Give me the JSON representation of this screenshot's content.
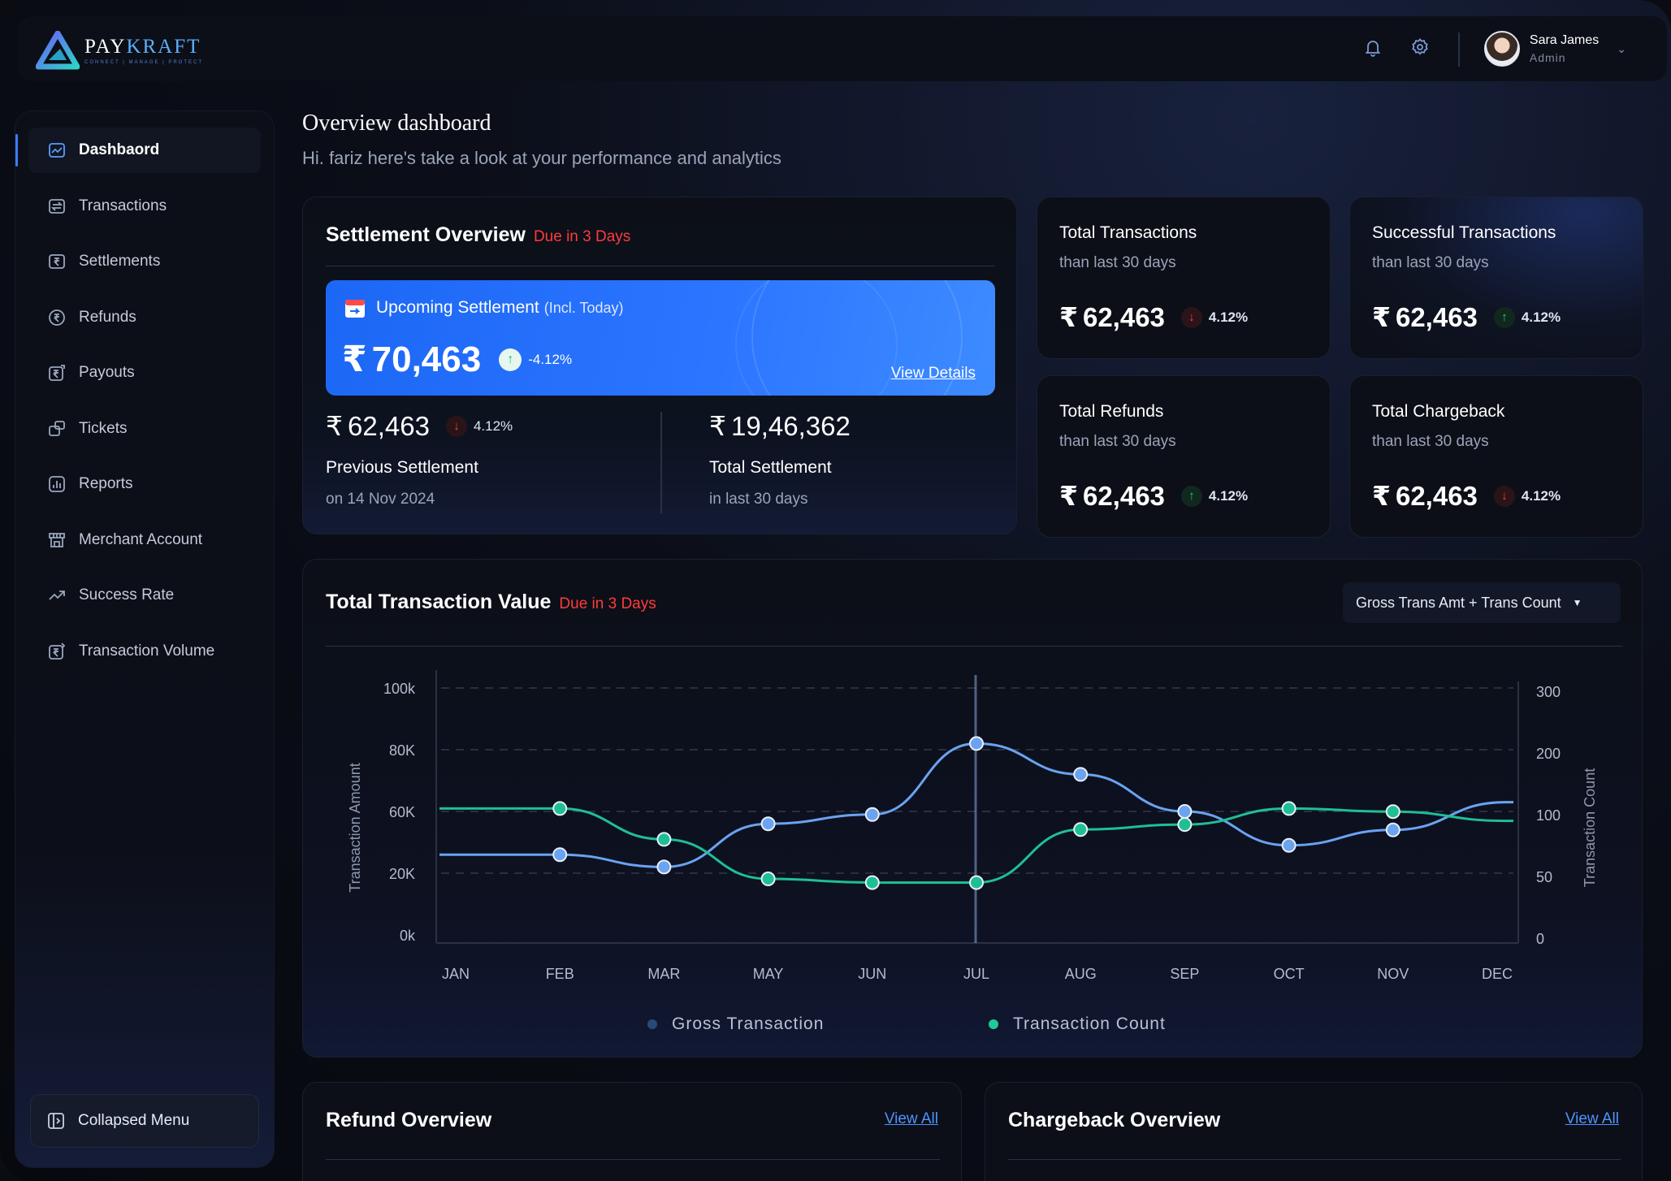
{
  "brand": {
    "name_part1": "PAY",
    "name_part2": "KRAFT",
    "tagline": "CONNECT | MANAGE | PROTECT"
  },
  "topbar": {
    "icons": [
      "bell-icon",
      "gear-icon"
    ],
    "user": {
      "name": "Sara James",
      "role": "Admin"
    }
  },
  "sidebar": {
    "items": [
      {
        "label": "Dashbaord",
        "icon": "chart-icon",
        "active": true
      },
      {
        "label": "Transactions",
        "icon": "transactions-icon"
      },
      {
        "label": "Settlements",
        "icon": "settlements-icon"
      },
      {
        "label": "Refunds",
        "icon": "refunds-icon"
      },
      {
        "label": "Payouts",
        "icon": "payouts-icon"
      },
      {
        "label": "Tickets",
        "icon": "tickets-icon"
      },
      {
        "label": "Reports",
        "icon": "reports-icon"
      },
      {
        "label": "Merchant Account",
        "icon": "store-icon"
      },
      {
        "label": "Success Rate",
        "icon": "trend-icon"
      },
      {
        "label": "Transaction Volume",
        "icon": "volume-icon"
      }
    ],
    "collapse_label": "Collapsed Menu"
  },
  "header": {
    "title": "Overview dashboard",
    "subtitle": "Hi. fariz here's take a look at your performance and analytics"
  },
  "settlement": {
    "title": "Settlement Overview",
    "due": "Due in 3 Days",
    "upcoming": {
      "label": "Upcoming Settlement",
      "sub": "(Incl. Today)",
      "currency": "₹",
      "amount": "70,463",
      "change": "-4.12%",
      "link": "View Details"
    },
    "previous": {
      "currency": "₹",
      "amount": "62,463",
      "change": "4.12%",
      "label": "Previous Settlement",
      "sub": "on 14 Nov 2024"
    },
    "total": {
      "currency": "₹",
      "amount": "19,46,362",
      "label": "Total Settlement",
      "sub": "in last 30 days"
    }
  },
  "stats": [
    {
      "title": "Total Transactions",
      "sub": "than last 30 days",
      "currency": "₹",
      "amount": "62,463",
      "change": "4.12%",
      "direction": "down"
    },
    {
      "title": "Successful Transactions",
      "sub": "than last 30 days",
      "currency": "₹",
      "amount": "62,463",
      "change": "4.12%",
      "direction": "up"
    },
    {
      "title": "Total Refunds",
      "sub": "than last 30 days",
      "currency": "₹",
      "amount": "62,463",
      "change": "4.12%",
      "direction": "up"
    },
    {
      "title": "Total Chargeback",
      "sub": "than last 30 days",
      "currency": "₹",
      "amount": "62,463",
      "change": "4.12%",
      "direction": "down"
    }
  ],
  "ttv": {
    "title": "Total Transaction Value",
    "due": "Due in 3 Days",
    "dropdown": "Gross Trans Amt + Trans Count"
  },
  "chart_data": {
    "type": "line",
    "categories": [
      "JAN",
      "FEB",
      "MAR",
      "MAY",
      "JUN",
      "JUL",
      "AUG",
      "SEP",
      "OCT",
      "NOV",
      "DEC"
    ],
    "left_ticks": [
      "100k",
      "80K",
      "60K",
      "20K",
      "0k"
    ],
    "right_ticks": [
      "300",
      "200",
      "100",
      "50",
      "0"
    ],
    "ylabel_left": "Transaction Amount",
    "ylabel_right": "Transaction Count",
    "highlight_category": "JUL",
    "series": [
      {
        "name": "Gross Transaction",
        "axis": "left",
        "color": "#6aa3f0",
        "values": [
          null,
          32000,
          24000,
          52000,
          58000,
          82000,
          72000,
          60000,
          38000,
          48000,
          63000
        ],
        "start": 32000,
        "end": 63000
      },
      {
        "name": "Transaction Count",
        "axis": "right",
        "color": "#1fbf94",
        "values": [
          null,
          110,
          80,
          48,
          45,
          45,
          88,
          92,
          110,
          105,
          95
        ],
        "start": 110,
        "end": 95
      }
    ],
    "legend": [
      "Gross Transaction",
      "Transaction Count"
    ],
    "legend_colors": [
      "#294a78",
      "#20c997"
    ],
    "grid": true
  },
  "refund": {
    "title": "Refund Overview",
    "link": "View All"
  },
  "chargeback": {
    "title": "Chargeback Overview",
    "link": "View All"
  }
}
